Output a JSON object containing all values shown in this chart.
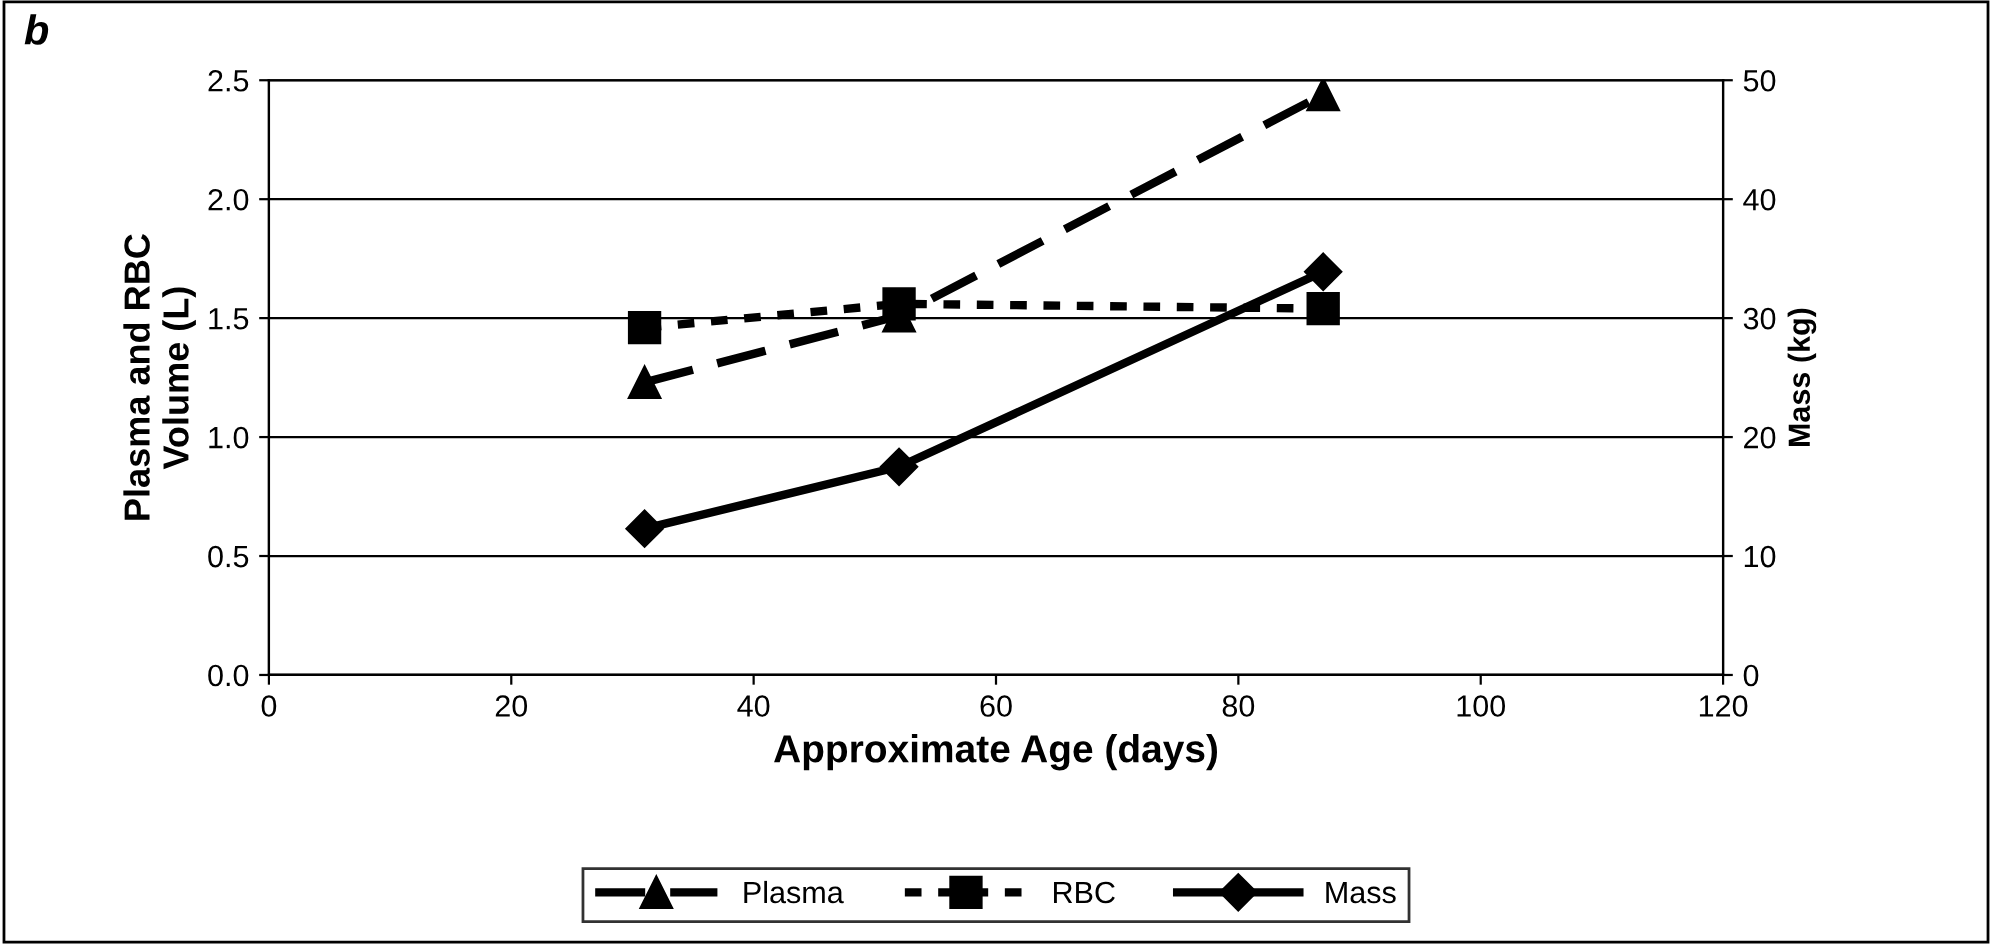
{
  "chart_data": {
    "type": "line",
    "xlabel": "Approximate Age (days)",
    "ylabel": "Plasma and RBC\nVolume (L)",
    "y2label": "Mass (kg)",
    "annotations": [
      "b"
    ],
    "x": [
      31,
      52,
      87
    ],
    "xlim": [
      0,
      120
    ],
    "xticks": [
      0,
      20,
      40,
      60,
      80,
      100,
      120
    ],
    "ylim": [
      0,
      2.5
    ],
    "yticks": [
      {
        "value": 0,
        "label": "0.0"
      },
      {
        "value": 0.5,
        "label": "0.5"
      },
      {
        "value": 1,
        "label": "1.0"
      },
      {
        "value": 1.5,
        "label": "1.5"
      },
      {
        "value": 2,
        "label": "2.0"
      },
      {
        "value": 2.5,
        "label": "2.5"
      }
    ],
    "y2lim": [
      0,
      50
    ],
    "y2ticks": [
      0,
      10,
      20,
      30,
      40,
      50
    ],
    "grid": "y",
    "legend": "bottom",
    "series": [
      {
        "name": "Plasma",
        "color": "#000000",
        "values": [
          1.23,
          1.51,
          2.44
        ],
        "marker": "triangle",
        "line_style": "dashed"
      },
      {
        "name": "RBC",
        "color": "#000000",
        "values": [
          1.46,
          1.56,
          1.54
        ],
        "marker": "square",
        "line_style": "dotted"
      },
      {
        "name": "Mass",
        "color": "#000000",
        "values": [
          12.3,
          17.5,
          33.9
        ],
        "marker": "diamond",
        "line_style": "solid",
        "axis": "y2"
      }
    ]
  }
}
